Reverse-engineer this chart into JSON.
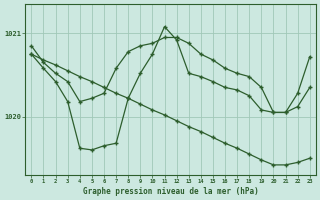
{
  "background_color": "#cce8e0",
  "grid_color": "#a0c8b8",
  "line_color": "#2d5e2d",
  "title": "Graphe pression niveau de la mer (hPa)",
  "xlim": [
    -0.5,
    23.5
  ],
  "ylim": [
    1019.3,
    1021.35
  ],
  "yticks": [
    1020,
    1021
  ],
  "xticks": [
    0,
    1,
    2,
    3,
    4,
    5,
    6,
    7,
    8,
    9,
    10,
    11,
    12,
    13,
    14,
    15,
    16,
    17,
    18,
    19,
    20,
    21,
    22,
    23
  ],
  "series_diag": [
    1020.75,
    1020.68,
    1020.62,
    1020.55,
    1020.48,
    1020.42,
    1020.35,
    1020.28,
    1020.22,
    1020.15,
    1020.08,
    1020.02,
    1019.95,
    1019.88,
    1019.82,
    1019.75,
    1019.68,
    1019.62,
    1019.55,
    1019.48,
    1019.42,
    1019.42,
    1019.45,
    1019.5
  ],
  "series_dip": [
    1020.75,
    1020.58,
    1020.42,
    1020.18,
    1019.62,
    1019.6,
    1019.65,
    1019.68,
    1020.22,
    1020.52,
    1020.75,
    1021.08,
    1020.92,
    1020.52,
    1020.48,
    1020.42,
    1020.35,
    1020.32,
    1020.25,
    1020.08,
    1020.05,
    1020.05,
    1020.28,
    1020.72
  ],
  "series_top": [
    1020.85,
    1020.65,
    1020.52,
    1020.42,
    1020.18,
    1020.22,
    1020.28,
    1020.58,
    1020.78,
    1020.85,
    1020.88,
    1020.95,
    1020.95,
    1020.88,
    1020.75,
    1020.68,
    1020.58,
    1020.52,
    1020.48,
    1020.35,
    1020.05,
    1020.05,
    1020.12,
    1020.35
  ]
}
